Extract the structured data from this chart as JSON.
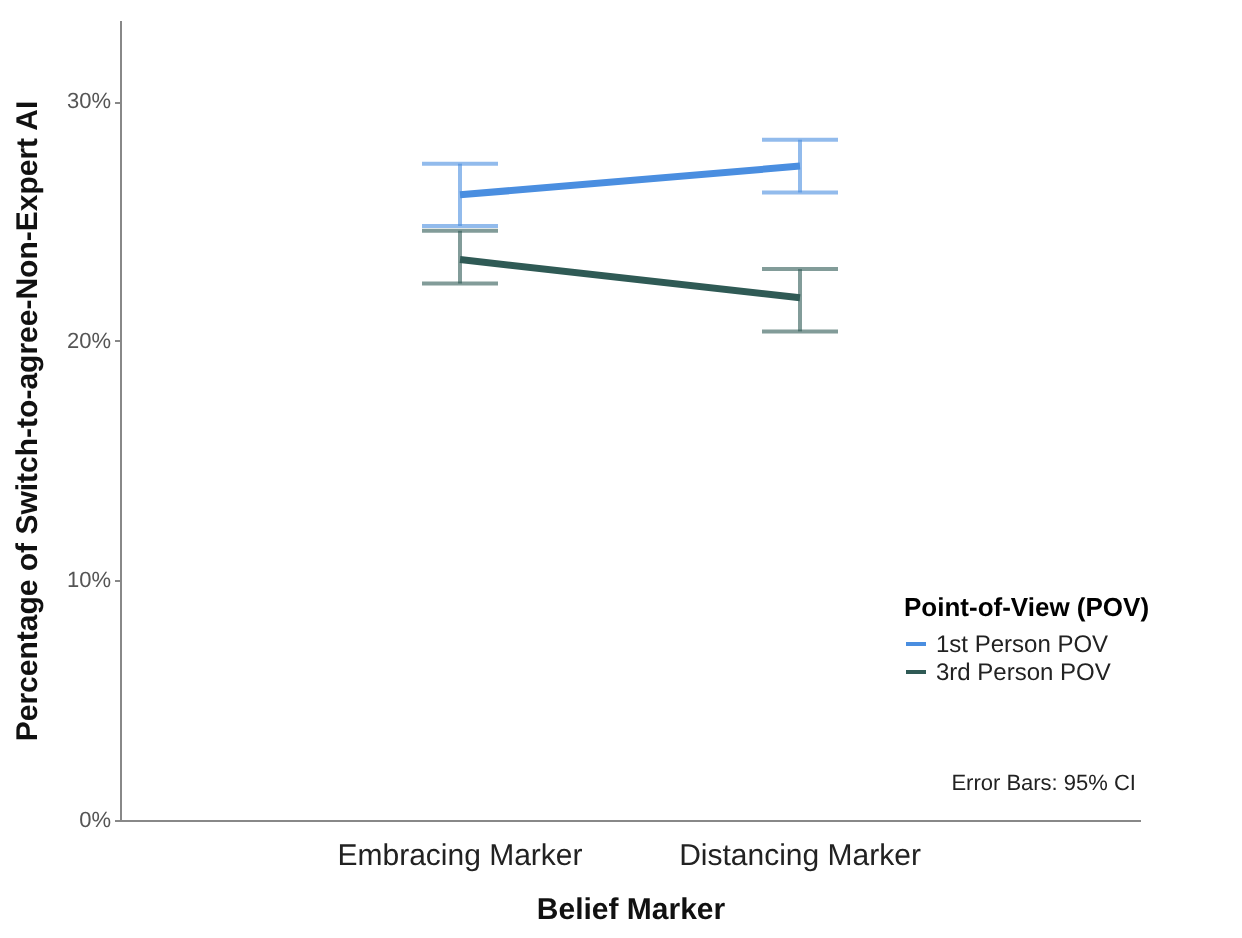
{
  "chart_data": {
    "type": "line",
    "xlabel": "Belief Marker",
    "ylabel": "Percentage of Switch-to-agree-Non-Expert AI",
    "legend_title": "Point-of-View (POV)",
    "categories": [
      "Embracing Marker",
      "Distancing Marker"
    ],
    "series": [
      {
        "name": "1st Person POV",
        "color": "#4a8ee0",
        "values": [
          26.1,
          27.3
        ],
        "errors": [
          [
            24.8,
            27.4
          ],
          [
            26.2,
            28.4
          ]
        ]
      },
      {
        "name": "3rd Person POV",
        "color": "#2f5a55",
        "values": [
          23.4,
          21.8
        ],
        "errors": [
          [
            22.4,
            24.6
          ],
          [
            20.4,
            23.0
          ]
        ]
      }
    ],
    "ylim": [
      0,
      33.4
    ],
    "yticks": [
      {
        "value": 0,
        "label": "0%"
      },
      {
        "value": 10,
        "label": "10%"
      },
      {
        "value": 20,
        "label": "20%"
      },
      {
        "value": 30,
        "label": "30%"
      }
    ],
    "grid": false,
    "legend": "bottom right",
    "marker": "none",
    "line_style": "solid",
    "annotations": [
      "Error Bars: 95% CI"
    ]
  }
}
